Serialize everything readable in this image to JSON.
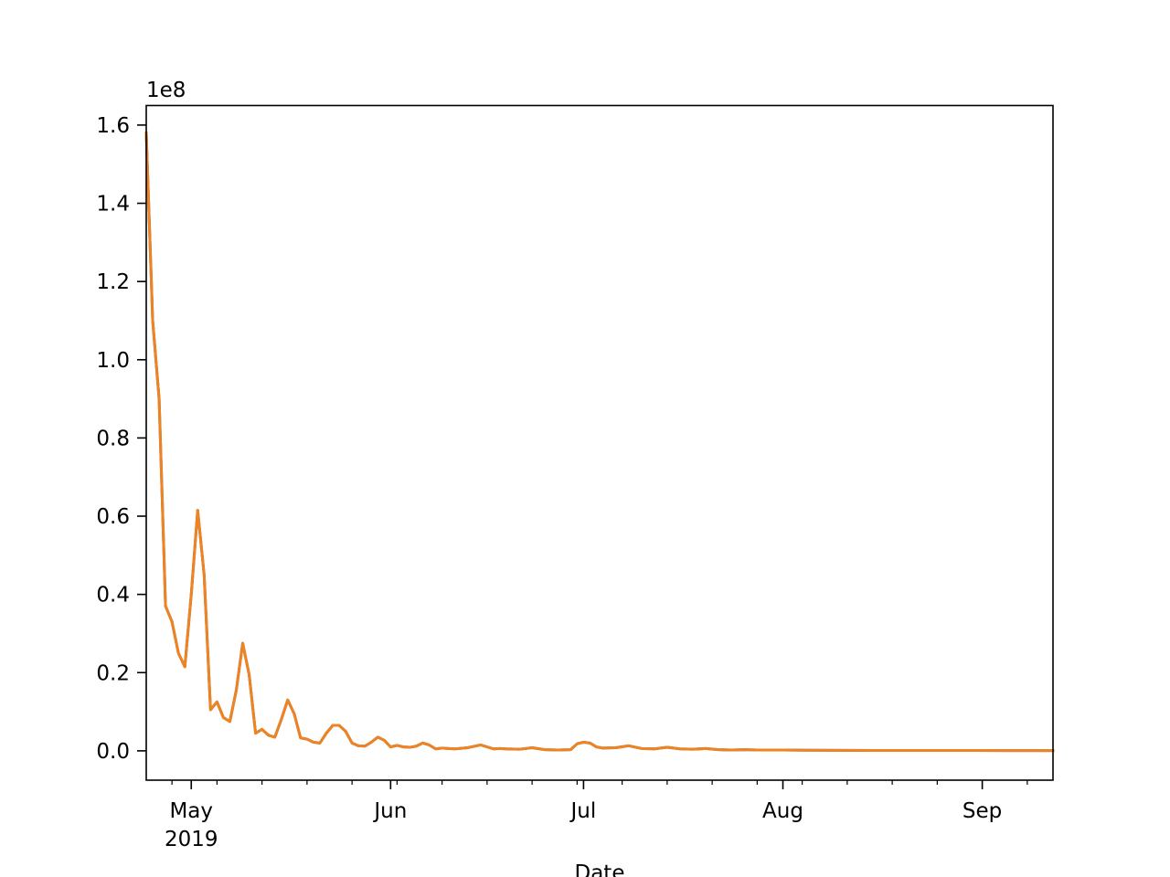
{
  "chart_data": {
    "type": "line",
    "title": "",
    "xlabel": "Date",
    "ylabel": "",
    "offset_label": "1e8",
    "y_scale_factor": 100000000,
    "xlim": [
      "2019-04-24",
      "2019-09-12"
    ],
    "ylim": [
      -0.075,
      1.65
    ],
    "x_axis_type": "date",
    "x_major_ticks": [
      {
        "date": "2019-05-01",
        "label": "May",
        "sublabel": "2019"
      },
      {
        "date": "2019-06-01",
        "label": "Jun",
        "sublabel": ""
      },
      {
        "date": "2019-07-01",
        "label": "Jul",
        "sublabel": ""
      },
      {
        "date": "2019-08-01",
        "label": "Aug",
        "sublabel": ""
      },
      {
        "date": "2019-09-01",
        "label": "Sep",
        "sublabel": ""
      }
    ],
    "x_minor_ticks": [
      "2019-04-28",
      "2019-05-05",
      "2019-05-12",
      "2019-05-19",
      "2019-05-26",
      "2019-06-02",
      "2019-06-09",
      "2019-06-16",
      "2019-06-23",
      "2019-06-30",
      "2019-07-07",
      "2019-07-14",
      "2019-07-21",
      "2019-07-28",
      "2019-08-04",
      "2019-08-11",
      "2019-08-18",
      "2019-08-25",
      "2019-09-08"
    ],
    "y_ticks": [
      {
        "value": 0.0,
        "label": "0.0"
      },
      {
        "value": 0.2,
        "label": "0.2"
      },
      {
        "value": 0.4,
        "label": "0.4"
      },
      {
        "value": 0.6,
        "label": "0.6"
      },
      {
        "value": 0.8,
        "label": "0.8"
      },
      {
        "value": 1.0,
        "label": "1.0"
      },
      {
        "value": 1.2,
        "label": "1.2"
      },
      {
        "value": 1.4,
        "label": "1.4"
      },
      {
        "value": 1.6,
        "label": "1.6"
      }
    ],
    "grid": false,
    "series": [
      {
        "color": "#2b7bba",
        "x": [
          "2019-04-24",
          "2019-04-25",
          "2019-04-26",
          "2019-04-27",
          "2019-04-28",
          "2019-04-29",
          "2019-04-30",
          "2019-05-01",
          "2019-05-02",
          "2019-05-03",
          "2019-05-04",
          "2019-05-05",
          "2019-05-06",
          "2019-05-07",
          "2019-05-08",
          "2019-05-09",
          "2019-05-10",
          "2019-05-11",
          "2019-05-12",
          "2019-05-13",
          "2019-05-14",
          "2019-05-15",
          "2019-05-16",
          "2019-05-17",
          "2019-05-18",
          "2019-05-19",
          "2019-05-20",
          "2019-05-21",
          "2019-05-22",
          "2019-05-23",
          "2019-05-24",
          "2019-05-25",
          "2019-05-26",
          "2019-05-27",
          "2019-05-28",
          "2019-05-29",
          "2019-05-30",
          "2019-05-31",
          "2019-06-01",
          "2019-06-02",
          "2019-06-03",
          "2019-06-04",
          "2019-06-05",
          "2019-06-06",
          "2019-06-07",
          "2019-06-08",
          "2019-06-09",
          "2019-06-10",
          "2019-06-11",
          "2019-06-13",
          "2019-06-15",
          "2019-06-17",
          "2019-06-18",
          "2019-06-19",
          "2019-06-21",
          "2019-06-23",
          "2019-06-25",
          "2019-06-27",
          "2019-06-29",
          "2019-06-30",
          "2019-07-01",
          "2019-07-02",
          "2019-07-03",
          "2019-07-04",
          "2019-07-06",
          "2019-07-08",
          "2019-07-10",
          "2019-07-12",
          "2019-07-14",
          "2019-07-16",
          "2019-07-18",
          "2019-07-20",
          "2019-07-22",
          "2019-07-24",
          "2019-07-26",
          "2019-07-28",
          "2019-07-30",
          "2019-08-01",
          "2019-08-05",
          "2019-08-10",
          "2019-08-15",
          "2019-08-20",
          "2019-08-25",
          "2019-08-31",
          "2019-09-05",
          "2019-09-12"
        ],
        "y": [
          1.58,
          1.1,
          0.9,
          0.37,
          0.33,
          0.25,
          0.215,
          0.4,
          0.615,
          0.45,
          0.105,
          0.125,
          0.085,
          0.075,
          0.155,
          0.275,
          0.195,
          0.045,
          0.055,
          0.04,
          0.035,
          0.08,
          0.13,
          0.095,
          0.033,
          0.03,
          0.022,
          0.02,
          0.045,
          0.065,
          0.065,
          0.05,
          0.02,
          0.013,
          0.012,
          0.022,
          0.035,
          0.027,
          0.01,
          0.014,
          0.01,
          0.009,
          0.012,
          0.02,
          0.015,
          0.005,
          0.007,
          0.006,
          0.005,
          0.008,
          0.015,
          0.005,
          0.006,
          0.005,
          0.004,
          0.008,
          0.003,
          0.002,
          0.003,
          0.018,
          0.022,
          0.02,
          0.01,
          0.007,
          0.008,
          0.013,
          0.006,
          0.005,
          0.009,
          0.005,
          0.004,
          0.006,
          0.003,
          0.002,
          0.003,
          0.002,
          0.002,
          0.002,
          0.0015,
          0.0012,
          0.001,
          0.001,
          0.001,
          0.0008,
          0.0007,
          0.0005
        ]
      },
      {
        "color": "#f0821f",
        "x": [
          "2019-04-24",
          "2019-04-25",
          "2019-04-26",
          "2019-04-27",
          "2019-04-28",
          "2019-04-29",
          "2019-04-30",
          "2019-05-01",
          "2019-05-02",
          "2019-05-03",
          "2019-05-04",
          "2019-05-05",
          "2019-05-06",
          "2019-05-07",
          "2019-05-08",
          "2019-05-09",
          "2019-05-10",
          "2019-05-11",
          "2019-05-12",
          "2019-05-13",
          "2019-05-14",
          "2019-05-15",
          "2019-05-16",
          "2019-05-17",
          "2019-05-18",
          "2019-05-19",
          "2019-05-20",
          "2019-05-21",
          "2019-05-22",
          "2019-05-23",
          "2019-05-24",
          "2019-05-25",
          "2019-05-26",
          "2019-05-27",
          "2019-05-28",
          "2019-05-29",
          "2019-05-30",
          "2019-05-31",
          "2019-06-01",
          "2019-06-02",
          "2019-06-03",
          "2019-06-04",
          "2019-06-05",
          "2019-06-06",
          "2019-06-07",
          "2019-06-08",
          "2019-06-09",
          "2019-06-10",
          "2019-06-11",
          "2019-06-13",
          "2019-06-15",
          "2019-06-17",
          "2019-06-18",
          "2019-06-19",
          "2019-06-21",
          "2019-06-23",
          "2019-06-25",
          "2019-06-27",
          "2019-06-29",
          "2019-06-30",
          "2019-07-01",
          "2019-07-02",
          "2019-07-03",
          "2019-07-04",
          "2019-07-06",
          "2019-07-08",
          "2019-07-10",
          "2019-07-12",
          "2019-07-14",
          "2019-07-16",
          "2019-07-18",
          "2019-07-20",
          "2019-07-22",
          "2019-07-24",
          "2019-07-26",
          "2019-07-28",
          "2019-07-30",
          "2019-08-01",
          "2019-08-05",
          "2019-08-10",
          "2019-08-15",
          "2019-08-20",
          "2019-08-25",
          "2019-08-31",
          "2019-09-05",
          "2019-09-12"
        ],
        "y": [
          1.58,
          1.1,
          0.9,
          0.37,
          0.33,
          0.25,
          0.215,
          0.4,
          0.615,
          0.45,
          0.105,
          0.125,
          0.085,
          0.075,
          0.155,
          0.275,
          0.195,
          0.045,
          0.055,
          0.04,
          0.035,
          0.08,
          0.13,
          0.095,
          0.033,
          0.03,
          0.022,
          0.02,
          0.045,
          0.065,
          0.065,
          0.05,
          0.02,
          0.013,
          0.012,
          0.022,
          0.035,
          0.027,
          0.01,
          0.014,
          0.01,
          0.009,
          0.012,
          0.02,
          0.015,
          0.005,
          0.007,
          0.006,
          0.005,
          0.008,
          0.015,
          0.005,
          0.006,
          0.005,
          0.004,
          0.008,
          0.003,
          0.002,
          0.003,
          0.018,
          0.022,
          0.02,
          0.01,
          0.007,
          0.008,
          0.013,
          0.006,
          0.005,
          0.009,
          0.005,
          0.004,
          0.006,
          0.003,
          0.002,
          0.003,
          0.002,
          0.002,
          0.002,
          0.0015,
          0.0012,
          0.001,
          0.001,
          0.001,
          0.0008,
          0.0007,
          0.0005
        ]
      }
    ]
  }
}
